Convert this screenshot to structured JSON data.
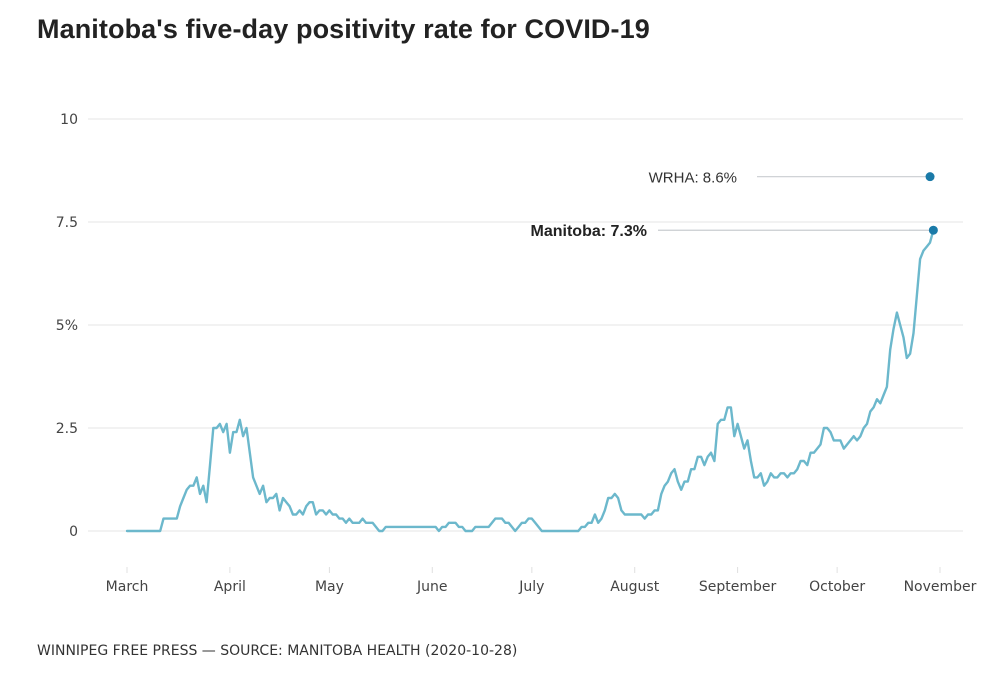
{
  "chart_data": {
    "type": "line",
    "title": "Manitoba's five-day positivity rate for COVID-19",
    "xlabel": "",
    "ylabel": "",
    "ylim": [
      0,
      10
    ],
    "y_ticks": [
      {
        "value": 0,
        "label": "0"
      },
      {
        "value": 2.5,
        "label": "2.5"
      },
      {
        "value": 5,
        "label": "5%"
      },
      {
        "value": 7.5,
        "label": "7.5"
      },
      {
        "value": 10,
        "label": "10"
      }
    ],
    "x_ticks": [
      {
        "day": 0,
        "label": "March"
      },
      {
        "day": 31,
        "label": "April"
      },
      {
        "day": 61,
        "label": "May"
      },
      {
        "day": 92,
        "label": "June"
      },
      {
        "day": 122,
        "label": "July"
      },
      {
        "day": 153,
        "label": "August"
      },
      {
        "day": 184,
        "label": "September"
      },
      {
        "day": 214,
        "label": "October"
      },
      {
        "day": 245,
        "label": "November"
      }
    ],
    "x_unit": "days since March 1, 2020",
    "grid": true,
    "series": [
      {
        "name": "Manitoba",
        "color": "#6cb8cc",
        "points": [
          [
            0,
            0
          ],
          [
            10,
            0
          ],
          [
            11,
            0.3
          ],
          [
            15,
            0.3
          ],
          [
            16,
            0.6
          ],
          [
            17,
            0.8
          ],
          [
            18,
            1.0
          ],
          [
            19,
            1.1
          ],
          [
            20,
            1.1
          ],
          [
            21,
            1.3
          ],
          [
            22,
            0.9
          ],
          [
            23,
            1.1
          ],
          [
            24,
            0.7
          ],
          [
            25,
            1.6
          ],
          [
            26,
            2.5
          ],
          [
            27,
            2.5
          ],
          [
            28,
            2.6
          ],
          [
            29,
            2.4
          ],
          [
            30,
            2.6
          ],
          [
            31,
            1.9
          ],
          [
            32,
            2.4
          ],
          [
            33,
            2.4
          ],
          [
            34,
            2.7
          ],
          [
            35,
            2.3
          ],
          [
            36,
            2.5
          ],
          [
            37,
            1.9
          ],
          [
            38,
            1.3
          ],
          [
            39,
            1.1
          ],
          [
            40,
            0.9
          ],
          [
            41,
            1.1
          ],
          [
            42,
            0.7
          ],
          [
            43,
            0.8
          ],
          [
            44,
            0.8
          ],
          [
            45,
            0.9
          ],
          [
            46,
            0.5
          ],
          [
            47,
            0.8
          ],
          [
            48,
            0.7
          ],
          [
            49,
            0.6
          ],
          [
            50,
            0.4
          ],
          [
            51,
            0.4
          ],
          [
            52,
            0.5
          ],
          [
            53,
            0.4
          ],
          [
            54,
            0.6
          ],
          [
            55,
            0.7
          ],
          [
            56,
            0.7
          ],
          [
            57,
            0.4
          ],
          [
            58,
            0.5
          ],
          [
            59,
            0.5
          ],
          [
            60,
            0.4
          ],
          [
            61,
            0.5
          ],
          [
            62,
            0.4
          ],
          [
            63,
            0.4
          ],
          [
            64,
            0.3
          ],
          [
            65,
            0.3
          ],
          [
            66,
            0.2
          ],
          [
            67,
            0.3
          ],
          [
            68,
            0.2
          ],
          [
            69,
            0.2
          ],
          [
            70,
            0.2
          ],
          [
            71,
            0.3
          ],
          [
            72,
            0.2
          ],
          [
            73,
            0.2
          ],
          [
            74,
            0.2
          ],
          [
            75,
            0.1
          ],
          [
            76,
            0
          ],
          [
            77,
            0
          ],
          [
            78,
            0.1
          ],
          [
            79,
            0.1
          ],
          [
            80,
            0.1
          ],
          [
            85,
            0.1
          ],
          [
            90,
            0.1
          ],
          [
            93,
            0.1
          ],
          [
            94,
            0
          ],
          [
            95,
            0.1
          ],
          [
            96,
            0.1
          ],
          [
            97,
            0.2
          ],
          [
            98,
            0.2
          ],
          [
            99,
            0.2
          ],
          [
            100,
            0.1
          ],
          [
            101,
            0.1
          ],
          [
            102,
            0
          ],
          [
            103,
            0
          ],
          [
            104,
            0
          ],
          [
            105,
            0.1
          ],
          [
            106,
            0.1
          ],
          [
            107,
            0.1
          ],
          [
            108,
            0.1
          ],
          [
            109,
            0.1
          ],
          [
            110,
            0.2
          ],
          [
            111,
            0.3
          ],
          [
            112,
            0.3
          ],
          [
            113,
            0.3
          ],
          [
            114,
            0.2
          ],
          [
            115,
            0.2
          ],
          [
            116,
            0.1
          ],
          [
            117,
            0
          ],
          [
            118,
            0.1
          ],
          [
            119,
            0.2
          ],
          [
            120,
            0.2
          ],
          [
            121,
            0.3
          ],
          [
            122,
            0.3
          ],
          [
            123,
            0.2
          ],
          [
            124,
            0.1
          ],
          [
            125,
            0
          ],
          [
            126,
            0
          ],
          [
            130,
            0
          ],
          [
            135,
            0
          ],
          [
            136,
            0
          ],
          [
            137,
            0.1
          ],
          [
            138,
            0.1
          ],
          [
            139,
            0.2
          ],
          [
            140,
            0.2
          ],
          [
            141,
            0.4
          ],
          [
            142,
            0.2
          ],
          [
            143,
            0.3
          ],
          [
            144,
            0.5
          ],
          [
            145,
            0.8
          ],
          [
            146,
            0.8
          ],
          [
            147,
            0.9
          ],
          [
            148,
            0.8
          ],
          [
            149,
            0.5
          ],
          [
            150,
            0.4
          ],
          [
            151,
            0.4
          ],
          [
            152,
            0.4
          ],
          [
            153,
            0.4
          ],
          [
            154,
            0.4
          ],
          [
            155,
            0.4
          ],
          [
            156,
            0.3
          ],
          [
            157,
            0.4
          ],
          [
            158,
            0.4
          ],
          [
            159,
            0.5
          ],
          [
            160,
            0.5
          ],
          [
            161,
            0.9
          ],
          [
            162,
            1.1
          ],
          [
            163,
            1.2
          ],
          [
            164,
            1.4
          ],
          [
            165,
            1.5
          ],
          [
            166,
            1.2
          ],
          [
            167,
            1.0
          ],
          [
            168,
            1.2
          ],
          [
            169,
            1.2
          ],
          [
            170,
            1.5
          ],
          [
            171,
            1.5
          ],
          [
            172,
            1.8
          ],
          [
            173,
            1.8
          ],
          [
            174,
            1.6
          ],
          [
            175,
            1.8
          ],
          [
            176,
            1.9
          ],
          [
            177,
            1.7
          ],
          [
            178,
            2.6
          ],
          [
            179,
            2.7
          ],
          [
            180,
            2.7
          ],
          [
            181,
            3.0
          ],
          [
            182,
            3.0
          ],
          [
            183,
            2.3
          ],
          [
            184,
            2.6
          ],
          [
            185,
            2.3
          ],
          [
            186,
            2.0
          ],
          [
            187,
            2.2
          ],
          [
            188,
            1.7
          ],
          [
            189,
            1.3
          ],
          [
            190,
            1.3
          ],
          [
            191,
            1.4
          ],
          [
            192,
            1.1
          ],
          [
            193,
            1.2
          ],
          [
            194,
            1.4
          ],
          [
            195,
            1.3
          ],
          [
            196,
            1.3
          ],
          [
            197,
            1.4
          ],
          [
            198,
            1.4
          ],
          [
            199,
            1.3
          ],
          [
            200,
            1.4
          ],
          [
            201,
            1.4
          ],
          [
            202,
            1.5
          ],
          [
            203,
            1.7
          ],
          [
            204,
            1.7
          ],
          [
            205,
            1.6
          ],
          [
            206,
            1.9
          ],
          [
            207,
            1.9
          ],
          [
            208,
            2.0
          ],
          [
            209,
            2.1
          ],
          [
            210,
            2.5
          ],
          [
            211,
            2.5
          ],
          [
            212,
            2.4
          ],
          [
            213,
            2.2
          ],
          [
            214,
            2.2
          ],
          [
            215,
            2.2
          ],
          [
            216,
            2.0
          ],
          [
            217,
            2.1
          ],
          [
            218,
            2.2
          ],
          [
            219,
            2.3
          ],
          [
            220,
            2.2
          ],
          [
            221,
            2.3
          ],
          [
            222,
            2.5
          ],
          [
            223,
            2.6
          ],
          [
            224,
            2.9
          ],
          [
            225,
            3.0
          ],
          [
            226,
            3.2
          ],
          [
            227,
            3.1
          ],
          [
            228,
            3.3
          ],
          [
            229,
            3.5
          ],
          [
            230,
            4.4
          ],
          [
            231,
            4.9
          ],
          [
            232,
            5.3
          ],
          [
            233,
            5.0
          ],
          [
            234,
            4.7
          ],
          [
            235,
            4.2
          ],
          [
            236,
            4.3
          ],
          [
            237,
            4.8
          ],
          [
            238,
            5.7
          ],
          [
            239,
            6.6
          ],
          [
            240,
            6.8
          ],
          [
            241,
            6.9
          ],
          [
            242,
            7.0
          ],
          [
            243,
            7.3
          ]
        ]
      }
    ],
    "annotations": [
      {
        "label": "WRHA: 8.6%",
        "value": 8.6,
        "day": 242,
        "bold": false,
        "dot_color": "#1a7aa8"
      },
      {
        "label": "Manitoba: 7.3%",
        "value": 7.3,
        "day": 243,
        "bold": true,
        "dot_color": "#1a7aa8"
      }
    ]
  },
  "header": {
    "title": "Manitoba's five-day positivity rate for COVID-19"
  },
  "footer": {
    "source": "WINNIPEG FREE PRESS — SOURCE: MANITOBA HEALTH (2020-10-28)"
  }
}
